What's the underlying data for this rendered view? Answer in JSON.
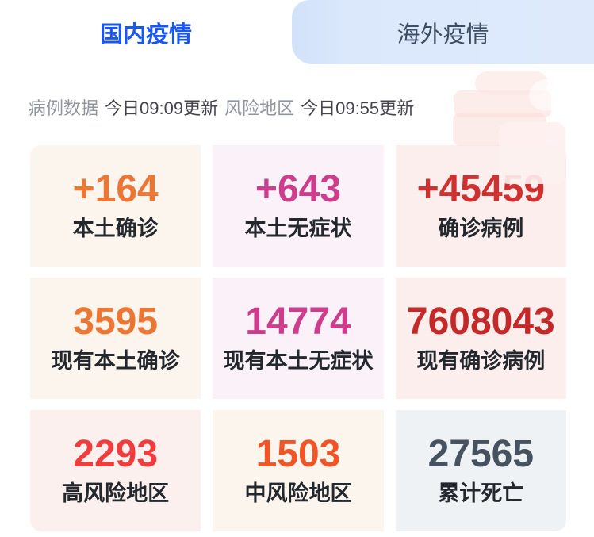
{
  "tabs": {
    "domestic": {
      "label": "国内疫情",
      "active": true
    },
    "overseas": {
      "label": "海外疫情",
      "active": false
    }
  },
  "status_bar": {
    "case_data_label": "病例数据",
    "case_data_updated": "今日09:09更新",
    "risk_area_label": "风险地区",
    "risk_area_updated": "今日09:55更新"
  },
  "colors": {
    "active_tab_text": "#1a56f0",
    "inactive_tab_text": "#3d4d63",
    "inactive_tab_bg": "#dce9fc",
    "label_text": "#23272e",
    "status_muted": "#8f969e",
    "status_strong": "#45454d"
  },
  "cards": [
    {
      "value": "+164",
      "label": "本土确诊",
      "value_color": "#ec7633",
      "bg": "#fcf5ed"
    },
    {
      "value": "+643",
      "label": "本土无症状",
      "value_color": "#cc3d8c",
      "bg": "#faf1f9"
    },
    {
      "value": "+45459",
      "label": "确诊病例",
      "value_color": "#d03030",
      "bg": "#fbeeed"
    },
    {
      "value": "3595",
      "label": "现有本土确诊",
      "value_color": "#ec7633",
      "bg": "#fcf5ed"
    },
    {
      "value": "14774",
      "label": "现有本土无症状",
      "value_color": "#cc3d8c",
      "bg": "#faf1f9"
    },
    {
      "value": "7608043",
      "label": "现有确诊病例",
      "value_color": "#c42929",
      "bg": "#fbeeed"
    },
    {
      "value": "2293",
      "label": "高风险地区",
      "value_color": "#f03c3c",
      "bg": "#fcf0ef"
    },
    {
      "value": "1503",
      "label": "中风险地区",
      "value_color": "#ef5526",
      "bg": "#fcf5ed"
    },
    {
      "value": "27565",
      "label": "累计死亡",
      "value_color": "#475260",
      "bg": "#eef2f5"
    }
  ]
}
